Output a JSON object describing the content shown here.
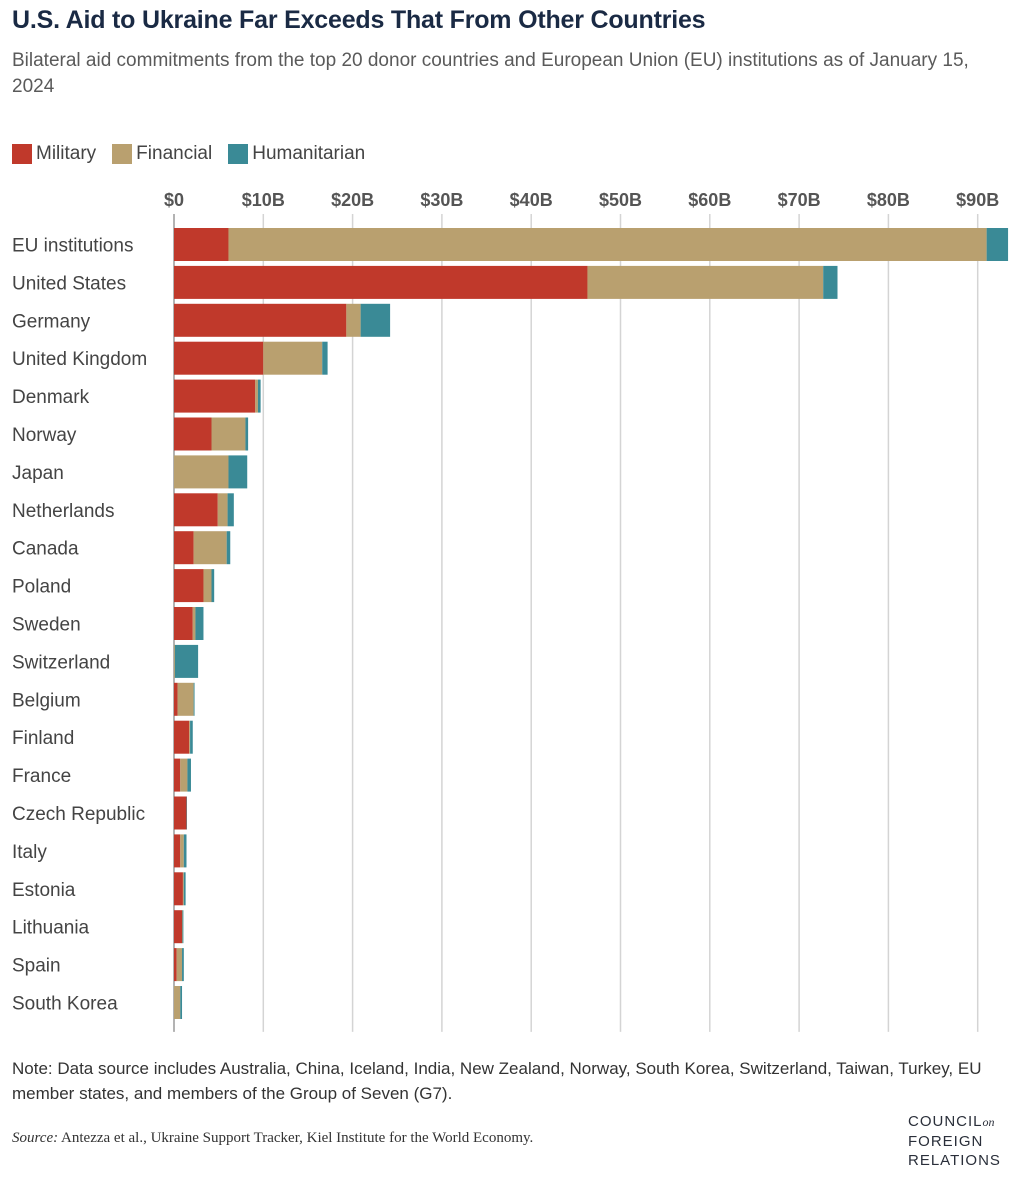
{
  "title": "U.S. Aid to Ukraine Far Exceeds That From Other Countries",
  "subtitle": "Bilateral aid commitments from the top 20 donor countries and European Union (EU) institutions as of January 15, 2024",
  "legend": [
    {
      "label": "Military",
      "color": "#c0392b"
    },
    {
      "label": "Financial",
      "color": "#b9a06f"
    },
    {
      "label": "Humanitarian",
      "color": "#3a8a96"
    }
  ],
  "chart_data": {
    "type": "bar",
    "orientation": "horizontal",
    "stacked": true,
    "categories": [
      "EU institutions",
      "United States",
      "Germany",
      "United Kingdom",
      "Denmark",
      "Norway",
      "Japan",
      "Netherlands",
      "Canada",
      "Poland",
      "Sweden",
      "Switzerland",
      "Belgium",
      "Finland",
      "France",
      "Czech Republic",
      "Italy",
      "Estonia",
      "Lithuania",
      "Spain",
      "South Korea"
    ],
    "series": [
      {
        "name": "Military",
        "color": "#c0392b",
        "values": [
          6.1,
          46.3,
          19.3,
          10.0,
          9.1,
          4.2,
          0.0,
          4.9,
          2.2,
          3.3,
          2.1,
          0.0,
          0.4,
          1.7,
          0.7,
          1.4,
          0.7,
          1.0,
          0.9,
          0.3,
          0.0
        ]
      },
      {
        "name": "Financial",
        "color": "#b9a06f",
        "values": [
          84.9,
          26.4,
          1.6,
          6.6,
          0.3,
          3.8,
          6.1,
          1.1,
          3.7,
          0.9,
          0.3,
          0.1,
          1.8,
          0.1,
          0.8,
          0.0,
          0.4,
          0.1,
          0.05,
          0.6,
          0.7
        ]
      },
      {
        "name": "Humanitarian",
        "color": "#3a8a96",
        "values": [
          2.4,
          1.6,
          3.3,
          0.6,
          0.3,
          0.3,
          2.1,
          0.7,
          0.4,
          0.3,
          0.9,
          2.6,
          0.1,
          0.3,
          0.4,
          0.05,
          0.3,
          0.2,
          0.1,
          0.2,
          0.2
        ]
      }
    ],
    "x_ticks": [
      "$0",
      "$10B",
      "$20B",
      "$30B",
      "$40B",
      "$50B",
      "$60B",
      "$70B",
      "$80B",
      "$90B"
    ],
    "xlim": [
      0,
      93
    ],
    "grid": true,
    "legend_position": "top-left"
  },
  "note": "Note: Data source includes Australia, China, Iceland, India, New Zealand, Norway, South Korea, Switzerland, Taiwan, Turkey, EU member states, and members of the Group of Seven (G7).",
  "source": {
    "label": "Source:",
    "text": "Antezza et al., Ukraine Support Tracker, Kiel Institute for the World Economy."
  },
  "logo": {
    "line1": "COUNCIL",
    "on": "on",
    "line2": "FOREIGN",
    "line3": "RELATIONS"
  }
}
